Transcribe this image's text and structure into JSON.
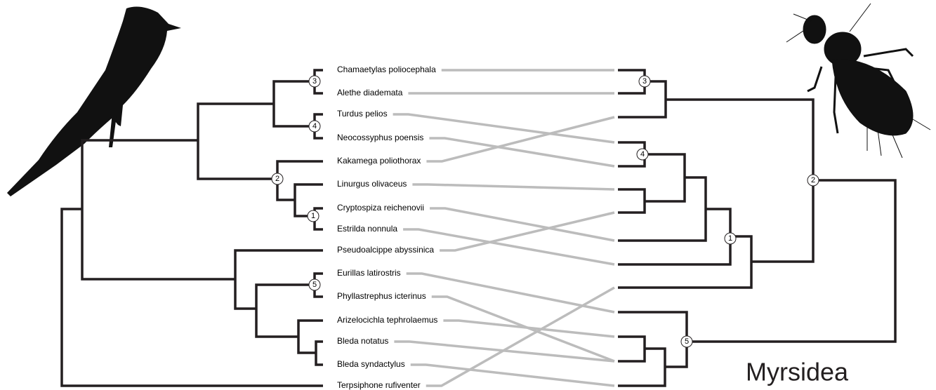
{
  "hosts": [
    "Chamaetylas poliocephala",
    "Alethe diademata",
    "Turdus pelios",
    "Neocossyphus poensis",
    "Kakamega poliothorax",
    "Linurgus olivaceus",
    "Cryptospiza reichenovii",
    "Estrilda nonnula",
    "Pseudoalcippe abyssinica",
    "Eurillas latirostris",
    "Phyllastrephus icterinus",
    "Arizelocichla tephrolaemus",
    "Bleda notatus",
    "Bleda syndactylus",
    "Terpsiphone rufiventer"
  ],
  "host_nodes": [
    3,
    4,
    2,
    1,
    5
  ],
  "parasite_nodes": [
    3,
    4,
    1,
    2,
    5
  ],
  "parasite_label": "Myrsidea"
}
